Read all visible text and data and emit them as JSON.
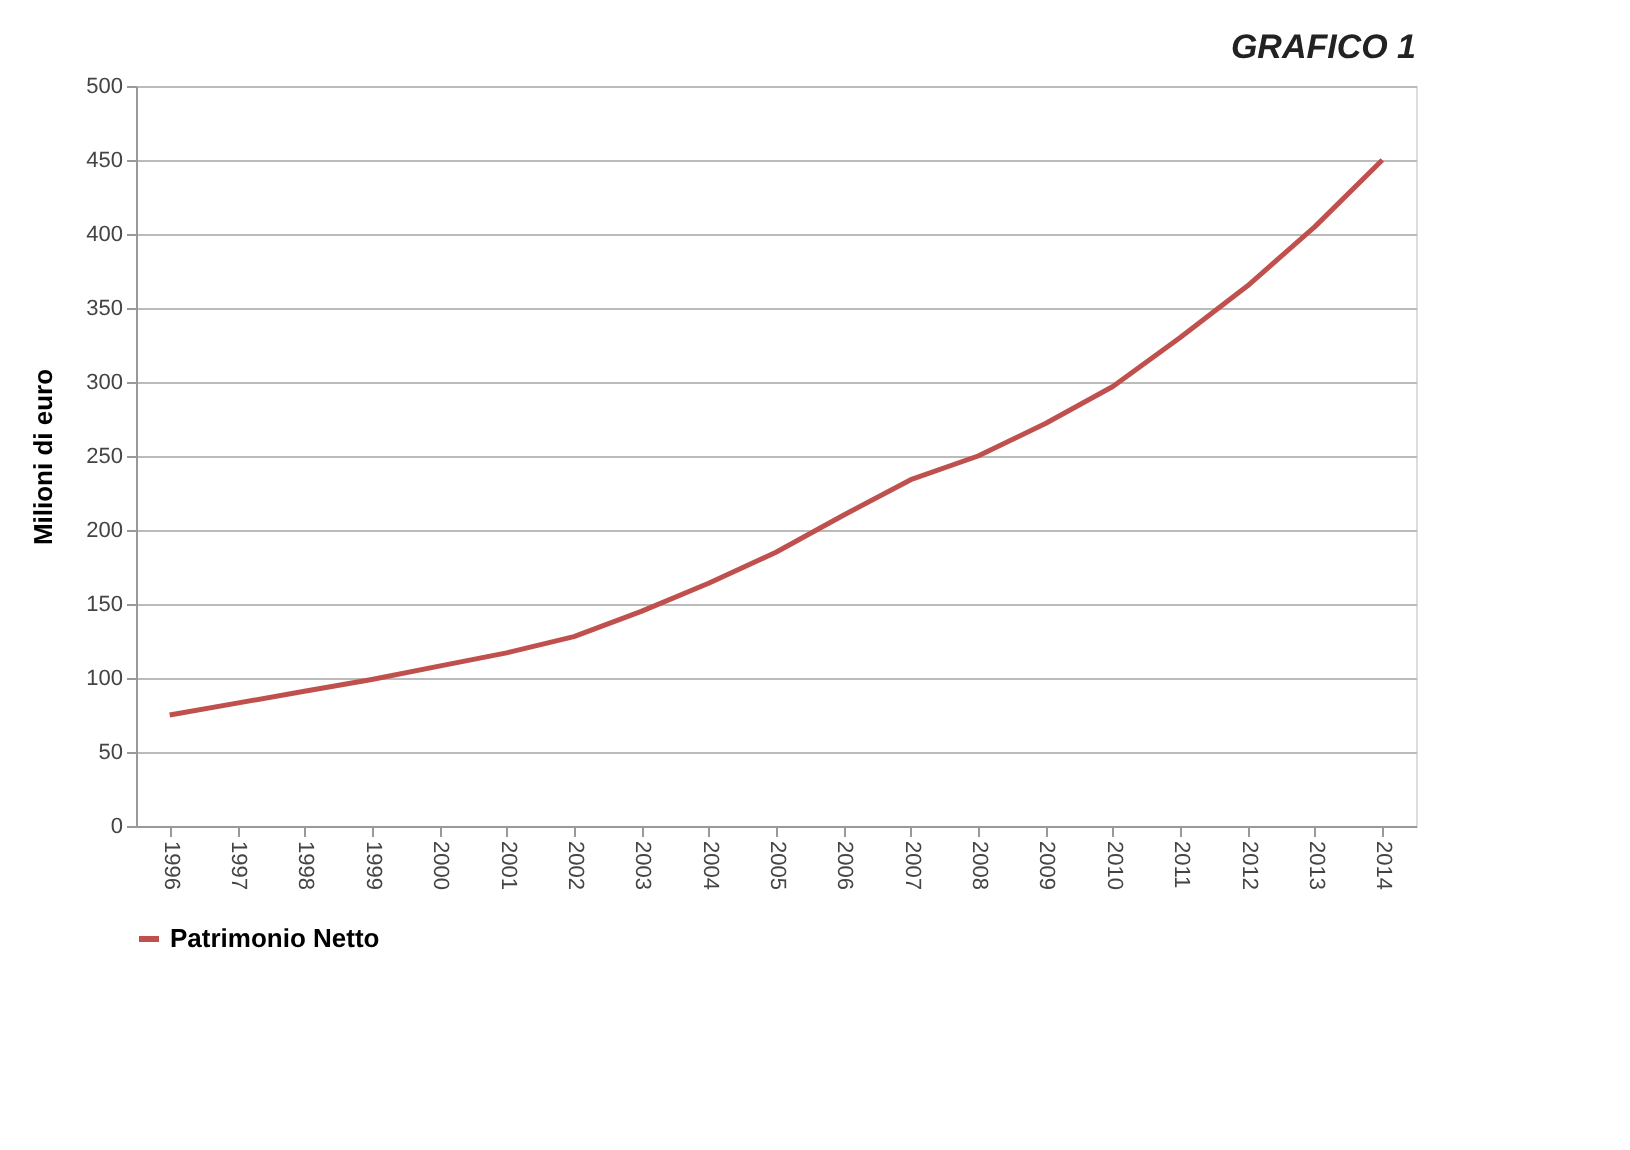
{
  "chart_data": {
    "type": "line",
    "title": "GRAFICO 1",
    "ylabel": "Milioni di euro",
    "categories": [
      "1996",
      "1997",
      "1998",
      "1999",
      "2000",
      "2001",
      "2002",
      "2003",
      "2004",
      "2005",
      "2006",
      "2007",
      "2008",
      "2009",
      "2010",
      "2011",
      "2012",
      "2013",
      "2014"
    ],
    "series": [
      {
        "name": "Patrimonio Netto",
        "color": "#c0504d",
        "values": [
          75,
          83,
          91,
          99,
          108,
          117,
          128,
          145,
          164,
          185,
          210,
          234,
          250,
          272,
          297,
          330,
          365,
          405,
          450
        ]
      }
    ],
    "ylim": [
      0,
      500
    ],
    "yticks": [
      0,
      50,
      100,
      150,
      200,
      250,
      300,
      350,
      400,
      450,
      500
    ],
    "grid": "y",
    "legend": "bottom",
    "marker": "none",
    "line_style": "solid"
  }
}
